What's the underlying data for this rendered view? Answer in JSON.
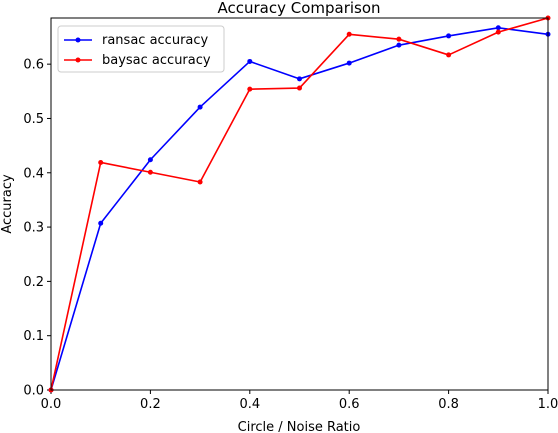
{
  "chart_data": {
    "type": "line",
    "title": "Accuracy Comparison",
    "xlabel": "Circle / Noise Ratio",
    "ylabel": "Accuracy",
    "xlim": [
      0.0,
      1.0
    ],
    "ylim": [
      0.0,
      0.685
    ],
    "xticks": [
      "0.0",
      "0.2",
      "0.4",
      "0.6",
      "0.8",
      "1.0"
    ],
    "yticks": [
      "0.0",
      "0.1",
      "0.2",
      "0.3",
      "0.4",
      "0.5",
      "0.6"
    ],
    "grid": false,
    "legend_position": "top-left",
    "x": [
      0.0,
      0.1,
      0.2,
      0.3,
      0.4,
      0.5,
      0.6,
      0.7,
      0.8,
      0.9,
      1.0
    ],
    "series": [
      {
        "name": "ransac accuracy",
        "color": "#0000ff",
        "values": [
          0.0,
          0.307,
          0.424,
          0.521,
          0.605,
          0.573,
          0.602,
          0.635,
          0.652,
          0.667,
          0.655
        ]
      },
      {
        "name": "baysac accuracy",
        "color": "#ff0000",
        "values": [
          0.0,
          0.419,
          0.401,
          0.383,
          0.554,
          0.556,
          0.655,
          0.646,
          0.617,
          0.659,
          0.685
        ]
      }
    ]
  }
}
